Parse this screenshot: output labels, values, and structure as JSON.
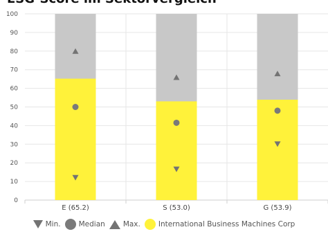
{
  "header": {
    "title": "ESG-Score im Sektorvergleich"
  },
  "chart_data": {
    "type": "bar",
    "title": "ESG-Score im Sektorvergleich",
    "categories": [
      "E (65.2)",
      "S (53.0)",
      "G (53.9)"
    ],
    "ylim": [
      0,
      100
    ],
    "yticks": [
      "0",
      "10",
      "20",
      "30",
      "40",
      "50",
      "60",
      "70",
      "80",
      "90",
      "100"
    ],
    "grid": true,
    "legend_position": "bottom",
    "series": [
      {
        "name": "International Business Machines Corp",
        "values": [
          65.2,
          53.0,
          53.9
        ],
        "color": "#fff23a"
      },
      {
        "name": "Min.",
        "values": [
          12,
          16.5,
          30
        ],
        "marker": "triangle-down",
        "color": "#737373"
      },
      {
        "name": "Median",
        "values": [
          50,
          41.5,
          48
        ],
        "marker": "circle",
        "color": "#7a7a7a"
      },
      {
        "name": "Max.",
        "values": [
          80,
          66,
          68
        ],
        "marker": "triangle-up",
        "color": "#737373"
      }
    ],
    "background_bar_color": "#c8c8c8"
  },
  "legend": {
    "min_label": "Min.",
    "median_label": "Median",
    "max_label": "Max.",
    "company_label": "International Business Machines Corp"
  }
}
